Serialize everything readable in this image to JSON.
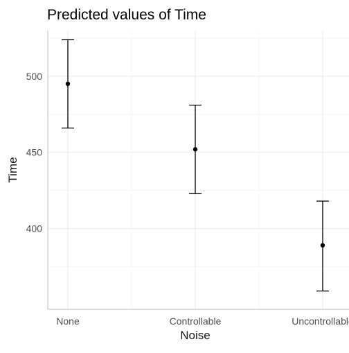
{
  "chart_data": {
    "type": "scatter",
    "title": "Predicted values of Time",
    "xlabel": "Noise",
    "ylabel": "Time",
    "categories": [
      "None",
      "Controllable",
      "Uncontrollable"
    ],
    "series": [
      {
        "values": [
          495,
          452,
          389
        ],
        "lower": [
          466,
          423,
          359
        ],
        "upper": [
          524,
          481,
          418
        ]
      }
    ],
    "y_ticks": [
      400,
      450,
      500
    ],
    "y_tick_labels": [
      "400",
      "450",
      "500"
    ],
    "ylim": [
      347,
      530
    ],
    "grid": true,
    "legend": "none",
    "colors": {
      "point": "#000000",
      "errorbar": "#000000",
      "grid": "#ebebeb",
      "axis": "#c8c8c8"
    }
  }
}
